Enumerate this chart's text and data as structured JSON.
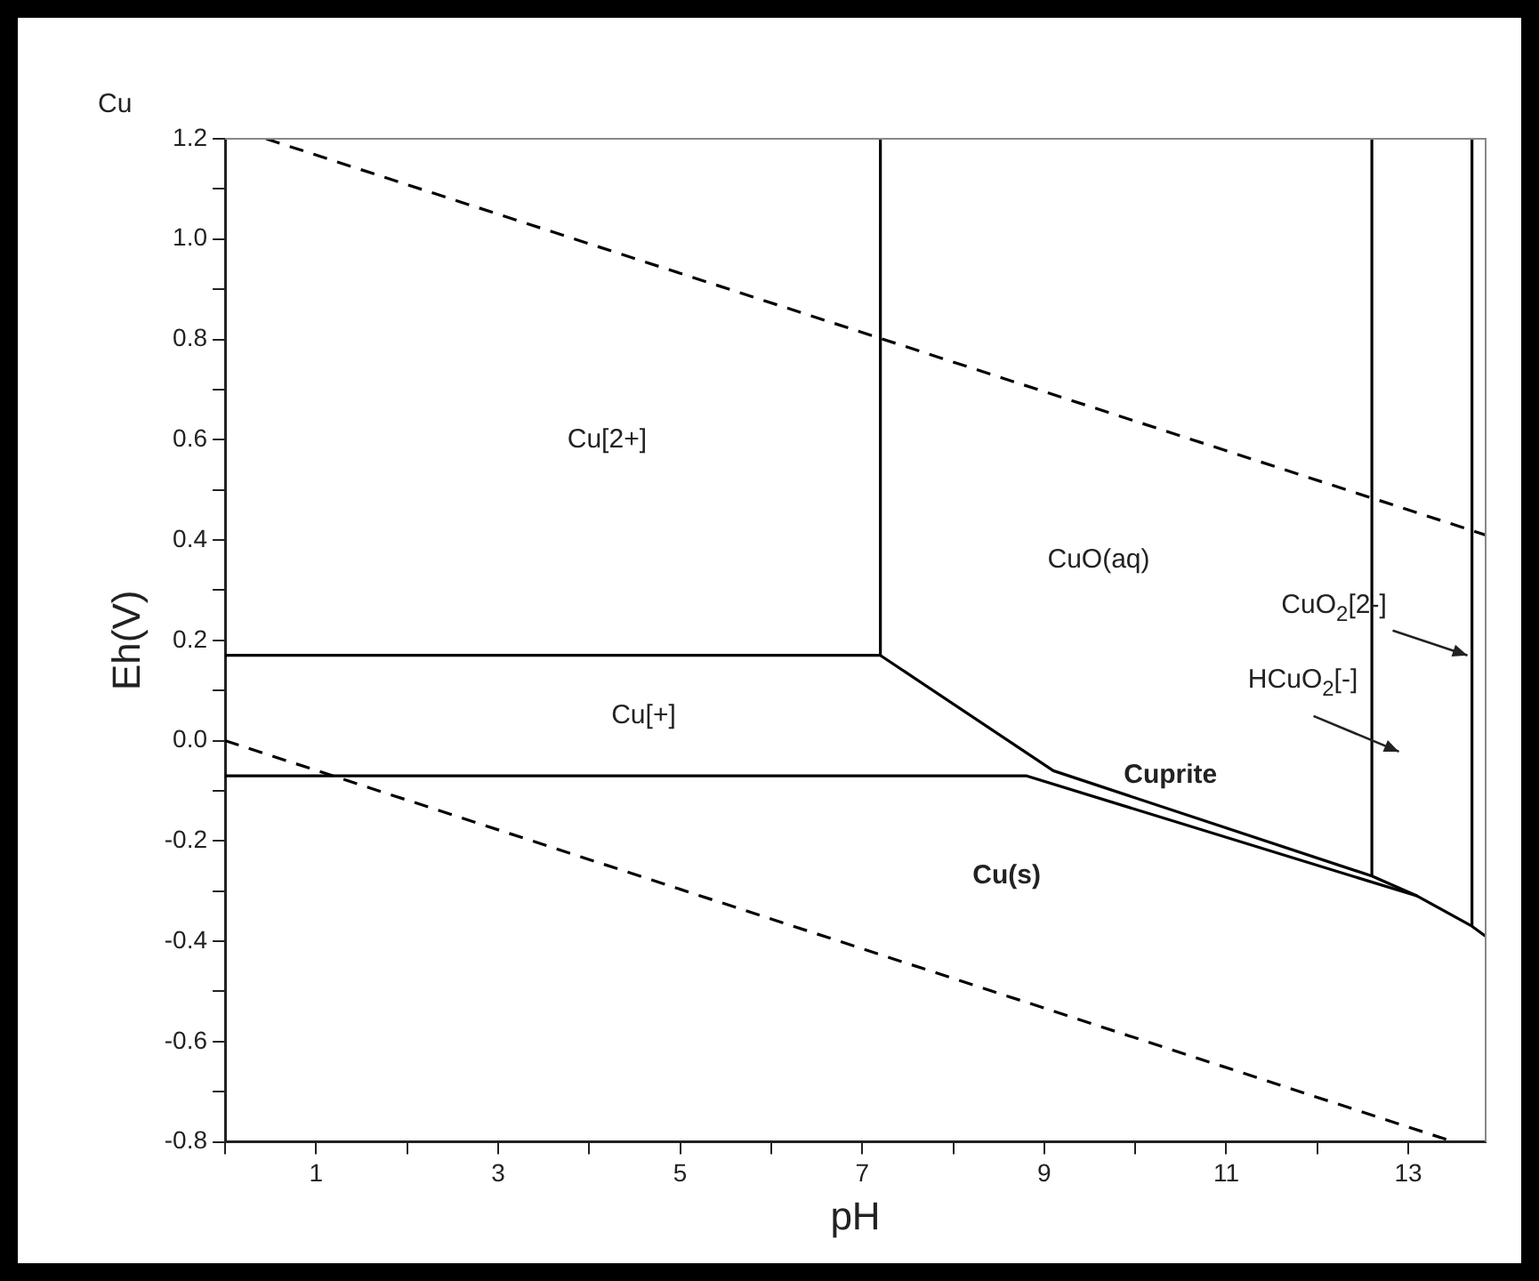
{
  "chart_data": {
    "type": "line",
    "title": "Cu",
    "xlabel": "pH",
    "ylabel": "Eh(V)",
    "xlim": [
      0,
      13.85
    ],
    "ylim": [
      -0.8,
      1.2
    ],
    "xticks": [
      {
        "value": 0,
        "label": null
      },
      1,
      {
        "value": 2,
        "label": null
      },
      3,
      {
        "value": 4,
        "label": null
      },
      5,
      {
        "value": 6,
        "label": null
      },
      7,
      {
        "value": 8,
        "label": null
      },
      9,
      {
        "value": 10,
        "label": null
      },
      11,
      {
        "value": 12,
        "label": null
      },
      13
    ],
    "yticks": [
      {
        "value": -0.8,
        "label": "-0.8"
      },
      {
        "value": -0.7,
        "label": null
      },
      {
        "value": -0.6,
        "label": "-0.6"
      },
      {
        "value": -0.5,
        "label": null
      },
      {
        "value": -0.4,
        "label": "-0.4"
      },
      {
        "value": -0.3,
        "label": null
      },
      {
        "value": -0.2,
        "label": "-0.2"
      },
      {
        "value": -0.1,
        "label": null
      },
      {
        "value": 0,
        "label": "0.0"
      },
      {
        "value": 0.1,
        "label": null
      },
      {
        "value": 0.2,
        "label": "0.2"
      },
      {
        "value": 0.3,
        "label": null
      },
      {
        "value": 0.4,
        "label": "0.4"
      },
      {
        "value": 0.5,
        "label": null
      },
      {
        "value": 0.6,
        "label": "0.6"
      },
      {
        "value": 0.7,
        "label": null
      },
      {
        "value": 0.8,
        "label": "0.8"
      },
      {
        "value": 0.9,
        "label": null
      },
      {
        "value": 1.0,
        "label": "1.0"
      },
      {
        "value": 1.1,
        "label": null
      },
      {
        "value": 1.2,
        "label": "1.2"
      }
    ],
    "grid": false,
    "legend": false,
    "marker": "none",
    "series": [
      {
        "color": "#000000",
        "x": [
          0,
          7.2,
          7.2
        ],
        "values": [
          0.17,
          0.17,
          1.2
        ]
      },
      {
        "color": "#000000",
        "x": [
          0,
          8.8,
          13.1
        ],
        "values": [
          -0.07,
          -0.07,
          -0.31
        ]
      },
      {
        "color": "#000000",
        "x": [
          7.2,
          9.1,
          12.6,
          13.1,
          13.7,
          13.85
        ],
        "values": [
          0.17,
          -0.06,
          -0.27,
          -0.31,
          -0.37,
          -0.39
        ]
      },
      {
        "color": "#000000",
        "x": [
          12.6,
          12.6
        ],
        "values": [
          -0.27,
          1.2
        ]
      },
      {
        "color": "#000000",
        "x": [
          13.7,
          13.7
        ],
        "values": [
          -0.37,
          1.2
        ]
      },
      {
        "color": "#000000",
        "x": [
          0.45,
          13.85
        ],
        "values": [
          1.2,
          0.41
        ],
        "line_style": "dashed"
      },
      {
        "color": "#000000",
        "x": [
          0,
          13.5
        ],
        "values": [
          0,
          -0.8
        ],
        "line_style": "dashed"
      }
    ],
    "annotations": [
      "Cu[2+]",
      "Cu[+]",
      "CuO(aq)",
      {
        "text": "CuO$_{2}$[2-]",
        "x": 13.65,
        "y": 0.17
      },
      "HCuO$_{2}$[-]",
      "Cuprite",
      "Cu(s)"
    ]
  }
}
